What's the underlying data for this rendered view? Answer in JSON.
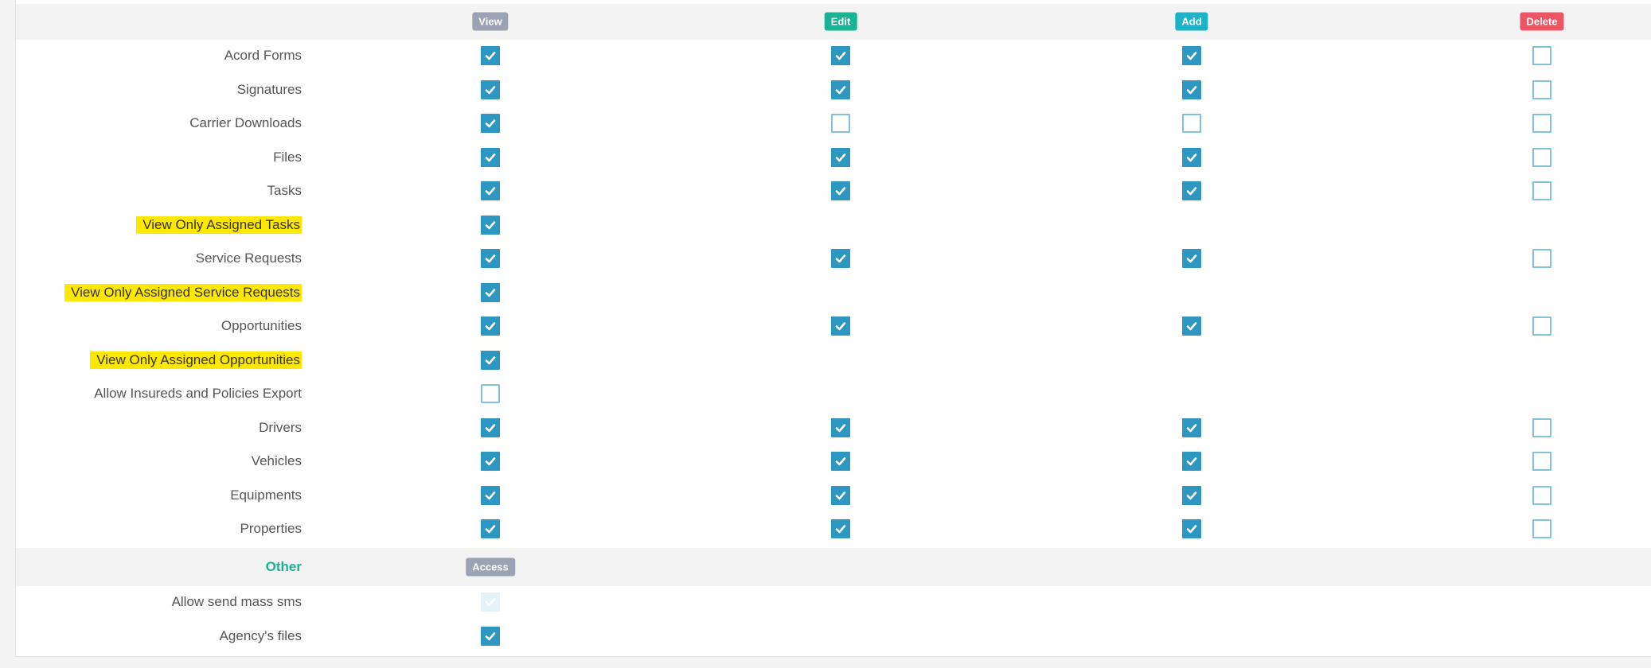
{
  "columns": [
    {
      "key": "view",
      "label": "View",
      "color": "#9aa3b3"
    },
    {
      "key": "edit",
      "label": "Edit",
      "color": "#1ab394"
    },
    {
      "key": "add",
      "label": "Add",
      "color": "#1cb3c8"
    },
    {
      "key": "delete",
      "label": "Delete",
      "color": "#ed5565"
    }
  ],
  "rows": [
    {
      "label": "Acord Forms",
      "highlight": false,
      "view": true,
      "edit": true,
      "add": true,
      "delete": false
    },
    {
      "label": "Signatures",
      "highlight": false,
      "view": true,
      "edit": true,
      "add": true,
      "delete": false
    },
    {
      "label": "Carrier Downloads",
      "highlight": false,
      "view": true,
      "edit": false,
      "add": false,
      "delete": false
    },
    {
      "label": "Files",
      "highlight": false,
      "view": true,
      "edit": true,
      "add": true,
      "delete": false
    },
    {
      "label": "Tasks",
      "highlight": false,
      "view": true,
      "edit": true,
      "add": true,
      "delete": false
    },
    {
      "label": "View Only Assigned Tasks",
      "highlight": true,
      "view": true
    },
    {
      "label": "Service Requests",
      "highlight": false,
      "view": true,
      "edit": true,
      "add": true,
      "delete": false
    },
    {
      "label": "View Only Assigned Service Requests",
      "highlight": true,
      "view": true
    },
    {
      "label": "Opportunities",
      "highlight": false,
      "view": true,
      "edit": true,
      "add": true,
      "delete": false
    },
    {
      "label": "View Only Assigned Opportunities",
      "highlight": true,
      "view": true
    },
    {
      "label": "Allow Insureds and Policies Export",
      "highlight": false,
      "view": false
    },
    {
      "label": "Drivers",
      "highlight": false,
      "view": true,
      "edit": true,
      "add": true,
      "delete": false
    },
    {
      "label": "Vehicles",
      "highlight": false,
      "view": true,
      "edit": true,
      "add": true,
      "delete": false
    },
    {
      "label": "Equipments",
      "highlight": false,
      "view": true,
      "edit": true,
      "add": true,
      "delete": false
    },
    {
      "label": "Properties",
      "highlight": false,
      "view": true,
      "edit": true,
      "add": true,
      "delete": false
    }
  ],
  "other": {
    "section_label": "Other",
    "access_label": "Access",
    "access_color": "#9aa3b3",
    "rows": [
      {
        "label": "Allow send mass sms",
        "access": true,
        "disabled": true
      },
      {
        "label": "Agency's files",
        "access": true,
        "disabled": false
      }
    ]
  }
}
